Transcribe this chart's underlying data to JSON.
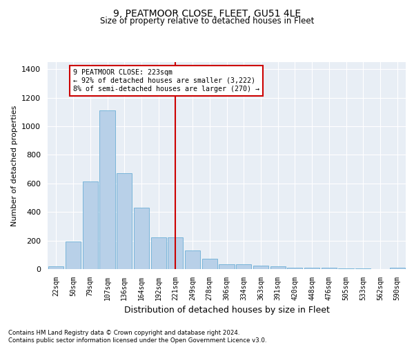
{
  "title": "9, PEATMOOR CLOSE, FLEET, GU51 4LE",
  "subtitle": "Size of property relative to detached houses in Fleet",
  "xlabel": "Distribution of detached houses by size in Fleet",
  "ylabel": "Number of detached properties",
  "bar_labels": [
    "22sqm",
    "50sqm",
    "79sqm",
    "107sqm",
    "136sqm",
    "164sqm",
    "192sqm",
    "221sqm",
    "249sqm",
    "278sqm",
    "306sqm",
    "334sqm",
    "363sqm",
    "391sqm",
    "420sqm",
    "448sqm",
    "476sqm",
    "505sqm",
    "533sqm",
    "562sqm",
    "590sqm"
  ],
  "bar_values": [
    18,
    195,
    615,
    1110,
    670,
    430,
    220,
    220,
    130,
    72,
    35,
    33,
    25,
    18,
    12,
    10,
    8,
    5,
    3,
    2,
    12
  ],
  "bar_color": "#b8d0e8",
  "bar_edge_color": "#6aaed6",
  "vline_x_idx": 7,
  "vline_label": "9 PEATMOOR CLOSE: 223sqm",
  "annotation_lines": [
    "← 92% of detached houses are smaller (3,222)",
    "8% of semi-detached houses are larger (270) →"
  ],
  "annotation_box_color": "#ffffff",
  "annotation_box_edge": "#cc0000",
  "vline_color": "#cc0000",
  "ylim": [
    0,
    1450
  ],
  "yticks": [
    0,
    200,
    400,
    600,
    800,
    1000,
    1200,
    1400
  ],
  "bg_color": "#e8eef5",
  "footer_line1": "Contains HM Land Registry data © Crown copyright and database right 2024.",
  "footer_line2": "Contains public sector information licensed under the Open Government Licence v3.0."
}
